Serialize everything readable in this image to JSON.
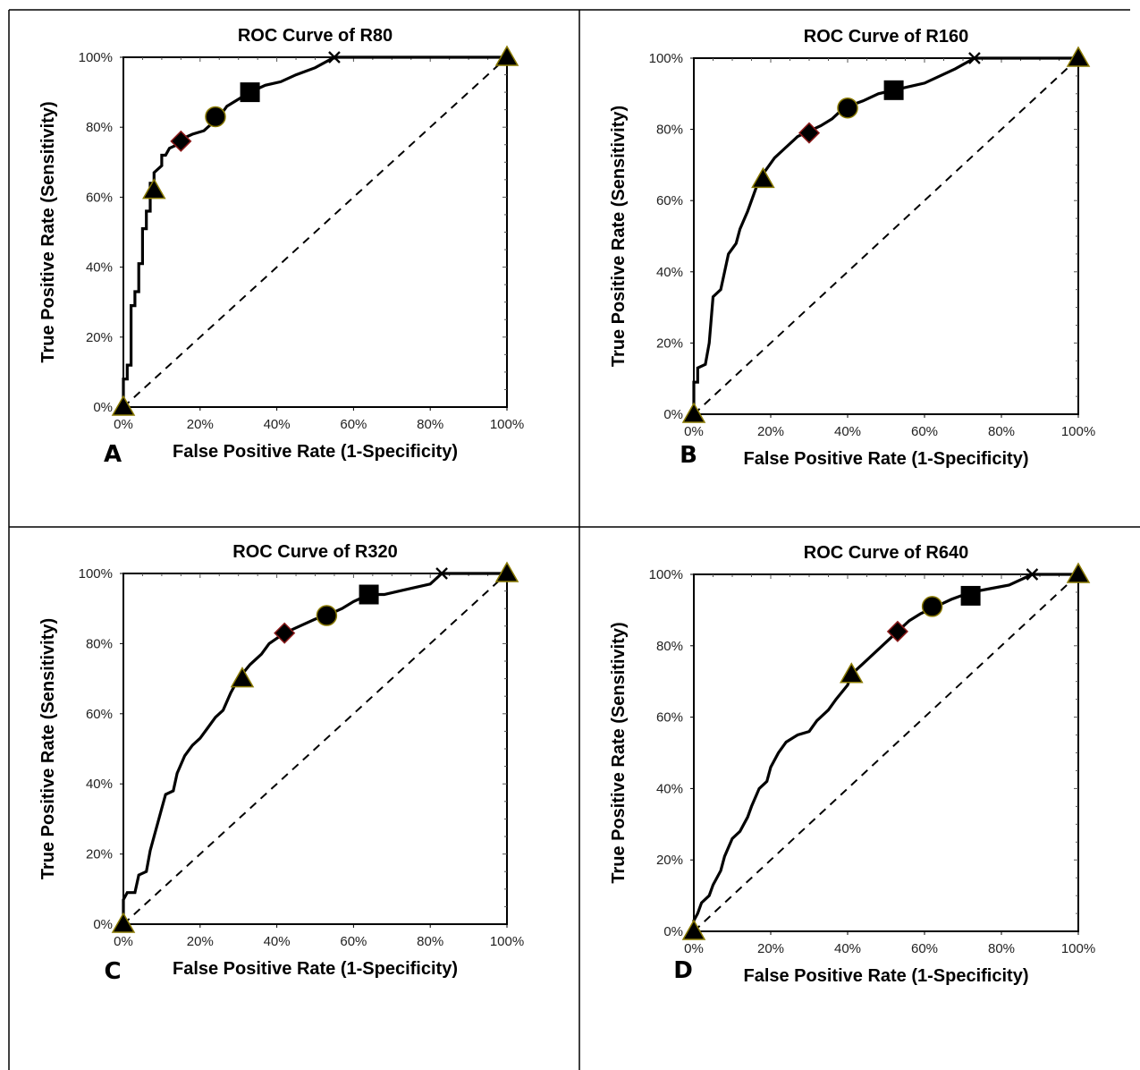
{
  "chart_data": [
    {
      "panel": "A",
      "type": "line",
      "title": "ROC Curve of R80",
      "xlabel": "False Positive Rate (1-Specificity)",
      "ylabel": "True Positive Rate (Sensitivity)",
      "xlim": [
        0,
        100
      ],
      "ylim": [
        0,
        100
      ],
      "xticks": [
        "0%",
        "20%",
        "40%",
        "60%",
        "80%",
        "100%"
      ],
      "yticks": [
        "0%",
        "20%",
        "40%",
        "60%",
        "80%",
        "100%"
      ],
      "series": [
        {
          "values": [
            [
              0,
              0
            ],
            [
              0,
              8
            ],
            [
              1,
              8
            ],
            [
              1,
              12
            ],
            [
              2,
              12
            ],
            [
              2,
              29
            ],
            [
              3,
              29
            ],
            [
              3,
              33
            ],
            [
              4,
              33
            ],
            [
              4,
              41
            ],
            [
              5,
              41
            ],
            [
              5,
              51
            ],
            [
              6,
              51
            ],
            [
              6,
              56
            ],
            [
              7,
              56
            ],
            [
              7,
              64
            ],
            [
              8,
              64
            ],
            [
              8,
              67
            ],
            [
              10,
              69
            ],
            [
              10,
              72
            ],
            [
              11,
              72
            ],
            [
              12,
              74
            ],
            [
              14,
              75
            ],
            [
              16,
              77
            ],
            [
              18,
              78
            ],
            [
              21,
              79
            ],
            [
              23,
              81
            ],
            [
              25,
              83
            ],
            [
              27,
              86
            ],
            [
              30,
              88
            ],
            [
              33,
              90
            ],
            [
              37,
              92
            ],
            [
              41,
              93
            ],
            [
              45,
              95
            ],
            [
              50,
              97
            ],
            [
              55,
              100
            ],
            [
              60,
              100
            ],
            [
              80,
              100
            ],
            [
              100,
              100
            ]
          ]
        }
      ],
      "chance_line": [
        [
          0,
          0
        ],
        [
          100,
          100
        ]
      ],
      "markers": [
        {
          "shape": "triangle",
          "x": 0,
          "y": 0
        },
        {
          "shape": "triangle",
          "x": 8,
          "y": 62
        },
        {
          "shape": "diamond",
          "x": 15,
          "y": 76
        },
        {
          "shape": "circle",
          "x": 24,
          "y": 83
        },
        {
          "shape": "square",
          "x": 33,
          "y": 90
        },
        {
          "shape": "x",
          "x": 55,
          "y": 100
        },
        {
          "shape": "triangle",
          "x": 100,
          "y": 100
        }
      ]
    },
    {
      "panel": "B",
      "type": "line",
      "title": "ROC Curve of R160",
      "xlabel": "False Positive Rate (1-Specificity)",
      "ylabel": "True Positive Rate (Sensitivity)",
      "xlim": [
        0,
        100
      ],
      "ylim": [
        0,
        100
      ],
      "xticks": [
        "0%",
        "20%",
        "40%",
        "60%",
        "80%",
        "100%"
      ],
      "yticks": [
        "0%",
        "20%",
        "40%",
        "60%",
        "80%",
        "100%"
      ],
      "series": [
        {
          "values": [
            [
              0,
              0
            ],
            [
              0,
              9
            ],
            [
              1,
              9
            ],
            [
              1,
              13
            ],
            [
              3,
              14
            ],
            [
              4,
              20
            ],
            [
              5,
              33
            ],
            [
              7,
              35
            ],
            [
              8,
              40
            ],
            [
              9,
              45
            ],
            [
              11,
              48
            ],
            [
              12,
              52
            ],
            [
              14,
              57
            ],
            [
              16,
              63
            ],
            [
              17,
              66
            ],
            [
              19,
              69
            ],
            [
              21,
              72
            ],
            [
              24,
              75
            ],
            [
              27,
              78
            ],
            [
              29,
              79
            ],
            [
              33,
              81
            ],
            [
              36,
              83
            ],
            [
              39,
              86
            ],
            [
              44,
              88
            ],
            [
              48,
              90
            ],
            [
              52,
              91
            ],
            [
              56,
              92
            ],
            [
              60,
              93
            ],
            [
              64,
              95
            ],
            [
              68,
              97
            ],
            [
              73,
              100
            ],
            [
              80,
              100
            ],
            [
              100,
              100
            ]
          ]
        }
      ],
      "chance_line": [
        [
          0,
          0
        ],
        [
          100,
          100
        ]
      ],
      "markers": [
        {
          "shape": "triangle",
          "x": 0,
          "y": 0
        },
        {
          "shape": "triangle",
          "x": 18,
          "y": 66
        },
        {
          "shape": "diamond",
          "x": 30,
          "y": 79
        },
        {
          "shape": "circle",
          "x": 40,
          "y": 86
        },
        {
          "shape": "square",
          "x": 52,
          "y": 91
        },
        {
          "shape": "x",
          "x": 73,
          "y": 100
        },
        {
          "shape": "triangle",
          "x": 100,
          "y": 100
        }
      ]
    },
    {
      "panel": "C",
      "type": "line",
      "title": "ROC Curve of R320",
      "xlabel": "False Positive Rate (1-Specificity)",
      "ylabel": "True Positive Rate (Sensitivity)",
      "xlim": [
        0,
        100
      ],
      "ylim": [
        0,
        100
      ],
      "xticks": [
        "0%",
        "20%",
        "40%",
        "60%",
        "80%",
        "100%"
      ],
      "yticks": [
        "0%",
        "20%",
        "40%",
        "60%",
        "80%",
        "100%"
      ],
      "series": [
        {
          "values": [
            [
              0,
              0
            ],
            [
              0,
              7
            ],
            [
              1,
              9
            ],
            [
              3,
              9
            ],
            [
              4,
              14
            ],
            [
              6,
              15
            ],
            [
              7,
              21
            ],
            [
              8,
              25
            ],
            [
              9,
              29
            ],
            [
              10,
              33
            ],
            [
              11,
              37
            ],
            [
              13,
              38
            ],
            [
              14,
              43
            ],
            [
              16,
              48
            ],
            [
              18,
              51
            ],
            [
              20,
              53
            ],
            [
              22,
              56
            ],
            [
              24,
              59
            ],
            [
              26,
              61
            ],
            [
              28,
              66
            ],
            [
              30,
              70
            ],
            [
              33,
              74
            ],
            [
              36,
              77
            ],
            [
              38,
              80
            ],
            [
              42,
              83
            ],
            [
              46,
              85
            ],
            [
              50,
              87
            ],
            [
              53,
              88
            ],
            [
              57,
              90
            ],
            [
              60,
              92
            ],
            [
              64,
              94
            ],
            [
              68,
              94
            ],
            [
              72,
              95
            ],
            [
              76,
              96
            ],
            [
              80,
              97
            ],
            [
              83,
              100
            ],
            [
              90,
              100
            ],
            [
              100,
              100
            ]
          ]
        }
      ],
      "chance_line": [
        [
          0,
          0
        ],
        [
          100,
          100
        ]
      ],
      "markers": [
        {
          "shape": "triangle",
          "x": 0,
          "y": 0
        },
        {
          "shape": "triangle",
          "x": 31,
          "y": 70
        },
        {
          "shape": "diamond",
          "x": 42,
          "y": 83
        },
        {
          "shape": "circle",
          "x": 53,
          "y": 88
        },
        {
          "shape": "square",
          "x": 64,
          "y": 94
        },
        {
          "shape": "x",
          "x": 83,
          "y": 100
        },
        {
          "shape": "triangle",
          "x": 100,
          "y": 100
        }
      ]
    },
    {
      "panel": "D",
      "type": "line",
      "title": "ROC Curve of R640",
      "xlabel": "False Positive Rate (1-Specificity)",
      "ylabel": "True Positive Rate (Sensitivity)",
      "xlim": [
        0,
        100
      ],
      "ylim": [
        0,
        100
      ],
      "xticks": [
        "0%",
        "20%",
        "40%",
        "60%",
        "80%",
        "100%"
      ],
      "yticks": [
        "0%",
        "20%",
        "40%",
        "60%",
        "80%",
        "100%"
      ],
      "series": [
        {
          "values": [
            [
              0,
              0
            ],
            [
              0,
              3
            ],
            [
              1,
              5
            ],
            [
              2,
              8
            ],
            [
              4,
              10
            ],
            [
              5,
              13
            ],
            [
              7,
              17
            ],
            [
              8,
              21
            ],
            [
              10,
              26
            ],
            [
              12,
              28
            ],
            [
              14,
              32
            ],
            [
              15,
              35
            ],
            [
              17,
              40
            ],
            [
              19,
              42
            ],
            [
              20,
              46
            ],
            [
              22,
              50
            ],
            [
              24,
              53
            ],
            [
              27,
              55
            ],
            [
              30,
              56
            ],
            [
              32,
              59
            ],
            [
              35,
              62
            ],
            [
              37,
              65
            ],
            [
              40,
              69
            ],
            [
              41,
              72
            ],
            [
              44,
              75
            ],
            [
              47,
              78
            ],
            [
              50,
              81
            ],
            [
              53,
              84
            ],
            [
              56,
              87
            ],
            [
              59,
              89
            ],
            [
              63,
              91
            ],
            [
              67,
              93
            ],
            [
              72,
              95
            ],
            [
              77,
              96
            ],
            [
              82,
              97
            ],
            [
              88,
              100
            ],
            [
              95,
              100
            ],
            [
              100,
              100
            ]
          ]
        }
      ],
      "chance_line": [
        [
          0,
          0
        ],
        [
          100,
          100
        ]
      ],
      "markers": [
        {
          "shape": "triangle",
          "x": 0,
          "y": 0
        },
        {
          "shape": "triangle",
          "x": 41,
          "y": 72
        },
        {
          "shape": "diamond",
          "x": 53,
          "y": 84
        },
        {
          "shape": "circle",
          "x": 62,
          "y": 91
        },
        {
          "shape": "square",
          "x": 72,
          "y": 94
        },
        {
          "shape": "x",
          "x": 88,
          "y": 100
        },
        {
          "shape": "triangle",
          "x": 100,
          "y": 100
        }
      ]
    }
  ]
}
